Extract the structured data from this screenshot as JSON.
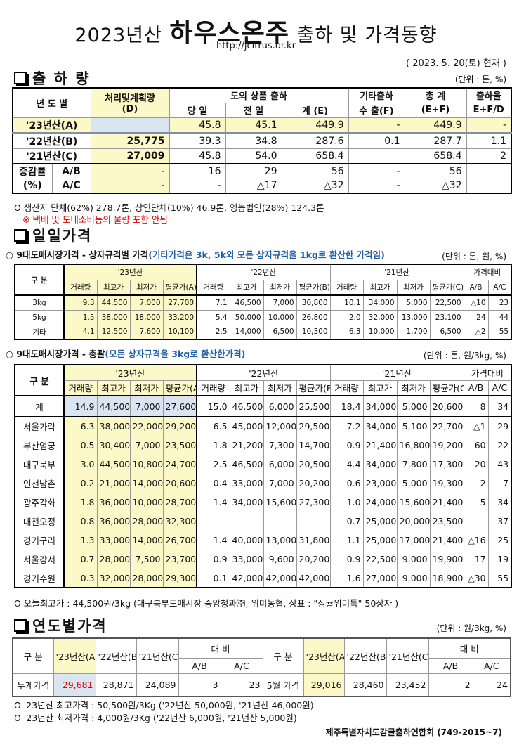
{
  "header": {
    "title_year": "2023년산",
    "title_product": "하우스온주",
    "title_rest": "출하 및 가격동향",
    "url": "- http://jcitrus.or.kr -",
    "date": "( 2023. 5. 20(토) 현재 )"
  },
  "shipment": {
    "title": "출 하 량",
    "unit": "(단위 : 톤, %)",
    "h": {
      "year": "년 도 별",
      "plan": "처리및계획량",
      "plan_sub": "(D)",
      "outside": "도외 상품 출하",
      "today": "당 일",
      "yesterday": "전 일",
      "sum": "계 (E)",
      "other": "기타출하",
      "export": "수 출(F)",
      "total": "총   계",
      "total_sub": "(E+F)",
      "rate": "출하율",
      "rate_sub": "E+F/D"
    },
    "rows": [
      {
        "label": "'23년산(A)",
        "cells": [
          "",
          "45.8",
          "45.1",
          "449.9",
          "-",
          "449.9",
          "-"
        ]
      },
      {
        "label": "'22년산(B)",
        "cells": [
          "25,775",
          "39.3",
          "34.8",
          "287.6",
          "0.1",
          "287.7",
          "1.1"
        ]
      },
      {
        "label": "'21년산(C)",
        "cells": [
          "27,009",
          "45.8",
          "54.0",
          "658.4",
          "",
          "658.4",
          "2"
        ]
      }
    ],
    "change_label": "증감률",
    "change_pct": "(%)",
    "change_rows": [
      {
        "label": "A/B",
        "cells": [
          "-",
          "16",
          "29",
          "56",
          "-",
          "56",
          ""
        ]
      },
      {
        "label": "A/C",
        "cells": [
          "-",
          "-",
          "△17",
          "△32",
          "-",
          "△32",
          ""
        ]
      }
    ],
    "note1": "O 생산자 단체(62%)  278.7톤,  상인단체(10%) 46.9톤, 영농법인(28%) 124.3톤",
    "note2": "※ 택배 및 도내소비등의 물량 포함 안됨"
  },
  "daily": {
    "title": "일일가격",
    "sub1": "○ 9대도매시장가격 - 상자규격별 가격",
    "sub1_note": "(기타가격은 3k, 5k외 모든 상자규격을 1kg로 환산한 가격임)",
    "unit1": "(단위 : 톤, 원, %)",
    "sub2": "○ 9대도매시장가격 - 총괄",
    "sub2_note": "(모든 상자규격을 3kg로 환산한가격)",
    "unit2": "(단위 : 톤, 원/3kg, %)",
    "h": {
      "gubun": "구  분",
      "y23": "'23년산",
      "y22": "'22년산",
      "y21": "'21년산",
      "cmp": "가격대비",
      "vol": "거래량",
      "max": "최고가",
      "min": "최저가",
      "avgA": "평균가(A)",
      "avgB": "평균가(B)",
      "avgC": "평균가(C)",
      "ab": "A/B",
      "ac": "A/C"
    },
    "size_rows": [
      {
        "label": "3kg",
        "cells": [
          "9.3",
          "44,500",
          "7,000",
          "27,700",
          "7.1",
          "46,500",
          "7,000",
          "30,800",
          "10.1",
          "34,000",
          "5,000",
          "22,500",
          "△10",
          "23"
        ]
      },
      {
        "label": "5kg",
        "cells": [
          "1.5",
          "38,000",
          "18,000",
          "33,200",
          "5.4",
          "50,000",
          "10,000",
          "26,800",
          "2.0",
          "32,000",
          "13,000",
          "23,100",
          "24",
          "44"
        ]
      },
      {
        "label": "기타",
        "cells": [
          "4.1",
          "12,500",
          "7,600",
          "10,100",
          "2.5",
          "14,000",
          "6,500",
          "10,300",
          "6.3",
          "10,000",
          "1,700",
          "6,500",
          "△2",
          "55"
        ]
      }
    ],
    "market_rows": [
      {
        "label": "계",
        "cells": [
          "14.9",
          "44,500",
          "7,000",
          "27,600",
          "15.0",
          "46,500",
          "6,000",
          "25,500",
          "18.4",
          "34,000",
          "5,000",
          "20,600",
          "8",
          "34"
        ]
      },
      {
        "label": "서울가락",
        "cells": [
          "6.3",
          "38,000",
          "22,000",
          "29,200",
          "6.5",
          "45,000",
          "12,000",
          "29,500",
          "7.2",
          "34,000",
          "5,100",
          "22,700",
          "△1",
          "29"
        ]
      },
      {
        "label": "부산엄궁",
        "cells": [
          "0.5",
          "30,400",
          "7,000",
          "23,500",
          "1.8",
          "21,200",
          "7,300",
          "14,700",
          "0.9",
          "21,400",
          "16,800",
          "19,200",
          "60",
          "22"
        ]
      },
      {
        "label": "대구북부",
        "cells": [
          "3.0",
          "44,500",
          "10,800",
          "24,700",
          "2.5",
          "46,500",
          "6,000",
          "20,500",
          "4.4",
          "34,000",
          "7,800",
          "17,300",
          "20",
          "43"
        ]
      },
      {
        "label": "인천남촌",
        "cells": [
          "0.2",
          "21,000",
          "14,000",
          "20,600",
          "0.4",
          "33,000",
          "7,000",
          "20,200",
          "0.6",
          "23,000",
          "5,000",
          "19,300",
          "2",
          "7"
        ]
      },
      {
        "label": "광주각화",
        "cells": [
          "1.8",
          "36,000",
          "10,000",
          "28,700",
          "1.4",
          "34,000",
          "15,600",
          "27,300",
          "1.0",
          "24,000",
          "15,600",
          "21,400",
          "5",
          "34"
        ]
      },
      {
        "label": "대전오정",
        "cells": [
          "0.8",
          "36,000",
          "28,000",
          "32,300",
          "-",
          "-",
          "-",
          "-",
          "0.7",
          "25,000",
          "20,000",
          "23,500",
          "-",
          "37"
        ]
      },
      {
        "label": "경기구리",
        "cells": [
          "1.3",
          "33,000",
          "14,000",
          "26,700",
          "1.4",
          "40,000",
          "13,000",
          "31,800",
          "1.1",
          "25,000",
          "17,000",
          "21,400",
          "△16",
          "25"
        ]
      },
      {
        "label": "서울강서",
        "cells": [
          "0.7",
          "28,000",
          "7,500",
          "23,700",
          "0.9",
          "33,000",
          "9,600",
          "20,200",
          "0.9",
          "22,500",
          "9,000",
          "19,900",
          "17",
          "19"
        ]
      },
      {
        "label": "경기수원",
        "cells": [
          "0.3",
          "32,000",
          "28,000",
          "29,300",
          "0.1",
          "42,000",
          "42,000",
          "42,000",
          "1.6",
          "27,000",
          "9,000",
          "18,900",
          "△30",
          "55"
        ]
      }
    ],
    "note": "O 오늘최고가 : 44,500원/3kg (대구북부도매시장 중앙청과㈜, 위미농협, 상표 : \"싱귤위미특\" 50상자 )"
  },
  "yearly": {
    "title": "연도별가격",
    "unit": "(단위 : 원/3kg, %)",
    "h": {
      "gubun": "구   분",
      "a": "'23년산(A)",
      "b": "'22년산(B)",
      "c": "'21년산(C)",
      "cmp": "대     비",
      "ab": "A/B",
      "ac": "A/C"
    },
    "left": {
      "label": "누계가격",
      "cells": [
        "29,681",
        "28,871",
        "24,089",
        "3",
        "23"
      ]
    },
    "right": {
      "label": "5월 가격",
      "cells": [
        "29,016",
        "28,460",
        "23,452",
        "2",
        "24"
      ]
    },
    "note1": "O  '23년산 최고가격 : 50,500원/3Kg ('22년산 50,000원, '21년산 46,000원)",
    "note2": "O  '23년산 최저가격 :   4,000원/3Kg ('22년산   6,000원, '21년산  5,000원)"
  },
  "footer": "제주특별자치도감귤출하연합회 (749-2015~7)",
  "colors": {
    "highlight_yellow": "#fdf8c7",
    "highlight_blue": "#dbe5f1",
    "accent_red": "#dd0000",
    "note_blue": "#1f5fa8"
  }
}
